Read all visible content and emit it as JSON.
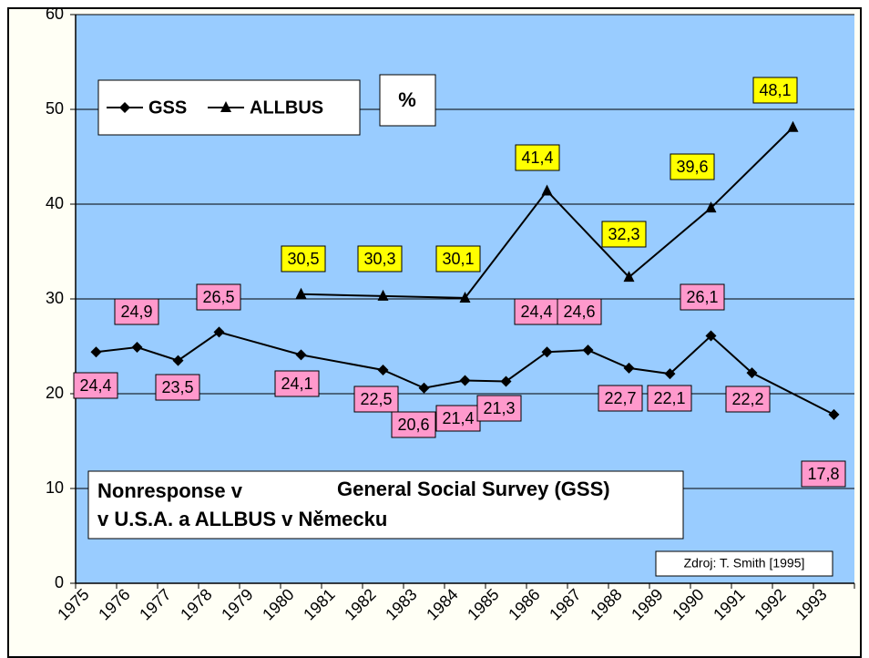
{
  "chart_data": {
    "type": "line",
    "title_lines": [
      "Nonresponse v",
      "General Social Survey (GSS)",
      "v U.S.A. a ALLBUS v Německu"
    ],
    "unit_label": "%",
    "source": "Zdroj: T. Smith [1995]",
    "categories": [
      "1975",
      "1976",
      "1977",
      "1978",
      "1979",
      "1980",
      "1981",
      "1982",
      "1983",
      "1984",
      "1985",
      "1986",
      "1987",
      "1988",
      "1989",
      "1990",
      "1991",
      "1992",
      "1993"
    ],
    "series": [
      {
        "name": "GSS",
        "color": "#000000",
        "marker": "diamond",
        "label_bg": "#ff99cc",
        "x": [
          "1975",
          "1976",
          "1977",
          "1978",
          "1980",
          "1982",
          "1983",
          "1984",
          "1985",
          "1986",
          "1987",
          "1988",
          "1989",
          "1990",
          "1991",
          "1993"
        ],
        "values": [
          24.4,
          24.9,
          23.5,
          26.5,
          24.1,
          22.5,
          20.6,
          21.4,
          21.3,
          24.4,
          24.6,
          22.7,
          22.1,
          26.1,
          22.2,
          17.8
        ],
        "value_labels": [
          "24,4",
          "24,9",
          "23,5",
          "26,5",
          "24,1",
          "22,5",
          "20,6",
          "21,4",
          "21,3",
          "24,4",
          "24,6",
          "22,7",
          "22,1",
          "26,1",
          "22,2",
          "17,8"
        ]
      },
      {
        "name": "ALLBUS",
        "color": "#000000",
        "marker": "triangle",
        "label_bg": "#ffff00",
        "x": [
          "1980",
          "1982",
          "1984",
          "1986",
          "1988",
          "1990",
          "1992"
        ],
        "values": [
          30.5,
          30.3,
          30.1,
          41.4,
          32.3,
          39.6,
          48.1
        ],
        "value_labels": [
          "30,5",
          "30,3",
          "30,1",
          "41,4",
          "32,3",
          "39,6",
          "48,1"
        ]
      }
    ],
    "ylim": [
      0,
      60
    ],
    "yticks": [
      0,
      10,
      20,
      30,
      40,
      50,
      60
    ],
    "grid": true,
    "plot_color": "#99ccff"
  }
}
